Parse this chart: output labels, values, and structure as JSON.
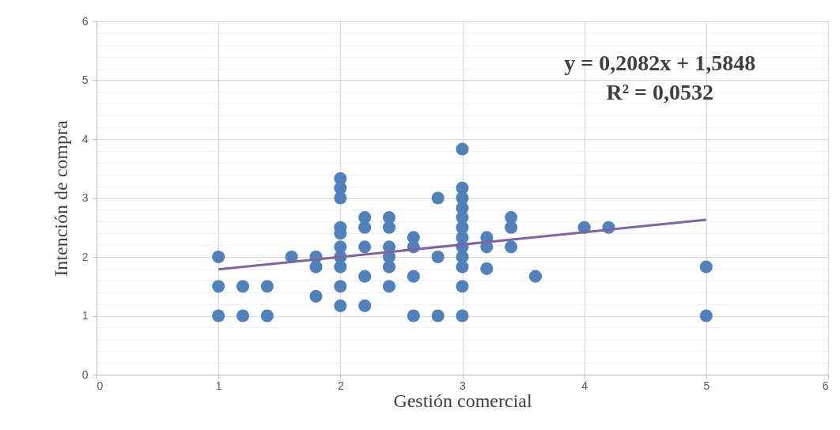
{
  "chart_data": {
    "type": "scatter",
    "xlabel": "Gestión comercial",
    "ylabel": "Intención de compra",
    "annotations": [
      "y = 0,2082x + 1,5848",
      "R² = 0,0532"
    ],
    "xlim": [
      0,
      6
    ],
    "xticks": [
      0,
      1,
      2,
      3,
      4,
      5,
      6
    ],
    "ylim": [
      0,
      6
    ],
    "yticks": [
      0,
      {
        "value": 0.2,
        "label": null
      },
      {
        "value": 0.4,
        "label": null
      },
      {
        "value": 0.6,
        "label": null
      },
      {
        "value": 0.8,
        "label": null
      },
      1,
      {
        "value": 1.2,
        "label": null
      },
      {
        "value": 1.4,
        "label": null
      },
      {
        "value": 1.6,
        "label": null
      },
      {
        "value": 1.8,
        "label": null
      },
      2,
      {
        "value": 2.2,
        "label": null
      },
      {
        "value": 2.4,
        "label": null
      },
      {
        "value": 2.6,
        "label": null
      },
      {
        "value": 2.8,
        "label": null
      },
      3,
      {
        "value": 3.2,
        "label": null
      },
      {
        "value": 3.4,
        "label": null
      },
      {
        "value": 3.6,
        "label": null
      },
      {
        "value": 3.8,
        "label": null
      },
      4,
      {
        "value": 4.2,
        "label": null
      },
      {
        "value": 4.4,
        "label": null
      },
      {
        "value": 4.6,
        "label": null
      },
      {
        "value": 4.8,
        "label": null
      },
      5,
      {
        "value": 5.2,
        "label": null
      },
      {
        "value": 5.4,
        "label": null
      },
      {
        "value": 5.6,
        "label": null
      },
      {
        "value": 5.8,
        "label": null
      },
      6
    ],
    "grid": true,
    "series": [
      {
        "type": "scatter",
        "marker": "circle",
        "color": "#4f81bd",
        "x": [
          1,
          1,
          1,
          1.2,
          1.2,
          1.4,
          1.4,
          1.6,
          1.8,
          1.8,
          1.8,
          2,
          2,
          2,
          2,
          2,
          2,
          2,
          2,
          2,
          2,
          2.2,
          2.2,
          2.2,
          2.2,
          2.2,
          2.4,
          2.4,
          2.4,
          2.4,
          2.4,
          2.4,
          2.6,
          2.6,
          2.6,
          2.6,
          2.8,
          2.8,
          2.8,
          3,
          3,
          3,
          3,
          3,
          3,
          3,
          3,
          3,
          3,
          3,
          3,
          3.2,
          3.2,
          3.2,
          3.4,
          3.4,
          3.4,
          3.6,
          4,
          4.2,
          5,
          5
        ],
        "values": [
          2,
          1.5,
          1,
          1.5,
          1,
          1.5,
          1,
          2,
          2,
          1.83,
          1.33,
          3.33,
          3.17,
          3,
          2.5,
          2.4,
          2.17,
          2,
          1.83,
          1.5,
          1.17,
          2.67,
          2.5,
          2.17,
          1.67,
          1.17,
          2.67,
          2.5,
          2.17,
          2,
          1.83,
          1.5,
          2.33,
          2.17,
          1.67,
          1,
          3,
          2,
          1,
          3.83,
          3.17,
          3,
          2.83,
          2.67,
          2.5,
          2.33,
          2.17,
          2,
          1.83,
          1.5,
          1,
          2.33,
          2.17,
          1.8,
          2.67,
          2.5,
          2.17,
          1.67,
          2.5,
          2.5,
          1.83,
          1
        ]
      },
      {
        "type": "line",
        "color": "#8064a2",
        "x": [
          1,
          5
        ],
        "values": [
          1.79,
          2.63
        ]
      }
    ]
  }
}
